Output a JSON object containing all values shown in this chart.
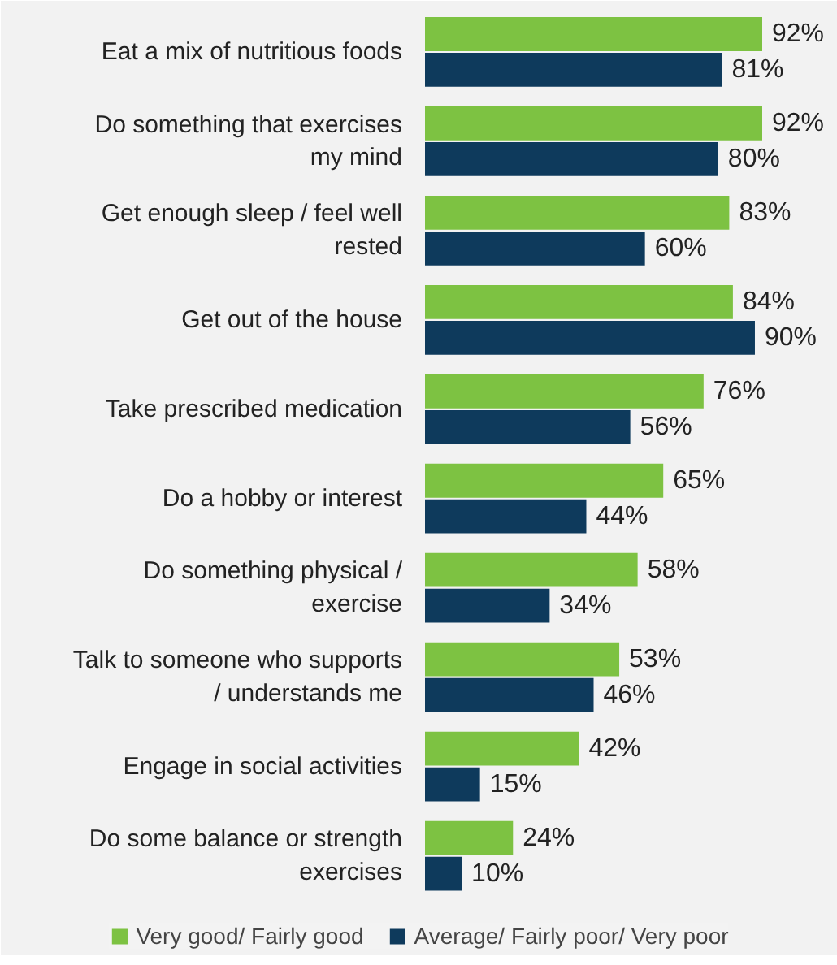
{
  "chart_data": {
    "type": "bar",
    "orientation": "horizontal",
    "legend": "bottom",
    "grid": false,
    "categories": [
      "Eat a mix of nutritious foods",
      "Do something that exercises my mind",
      "Get enough sleep / feel well rested",
      "Get out of the house",
      "Take prescribed medication",
      "Do a hobby or interest",
      "Do something physical / exercise",
      "Talk to someone who supports / understands me",
      "Engage in social activities",
      "Do some balance or strength exercises"
    ],
    "series": [
      {
        "name": "Very good/ Fairly good",
        "color": "#7dc242",
        "values": [
          92,
          92,
          83,
          84,
          76,
          65,
          58,
          53,
          42,
          24
        ],
        "value_labels": [
          "92%",
          "92%",
          "83%",
          "84%",
          "76%",
          "65%",
          "58%",
          "53%",
          "42%",
          "24%"
        ]
      },
      {
        "name": "Average/ Fairly poor/ Very poor",
        "color": "#0e3a5c",
        "values": [
          81,
          80,
          60,
          90,
          56,
          44,
          34,
          46,
          15,
          10
        ],
        "value_labels": [
          "81%",
          "80%",
          "60%",
          "90%",
          "56%",
          "44%",
          "34%",
          "46%",
          "15%",
          "10%"
        ]
      }
    ]
  }
}
